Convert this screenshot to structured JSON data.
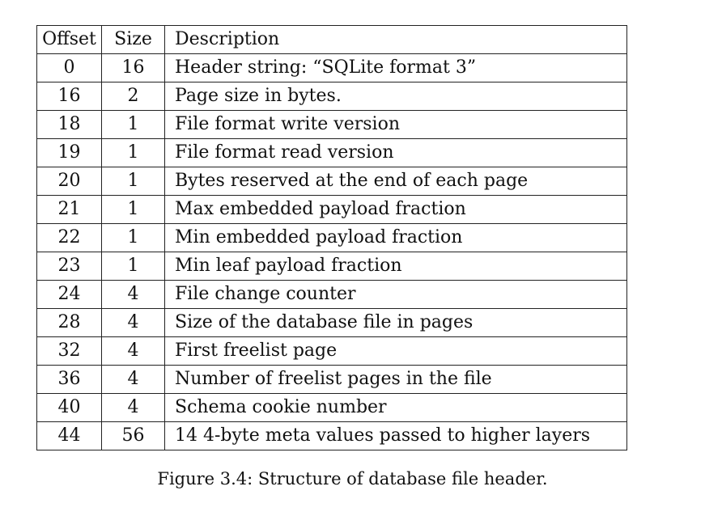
{
  "table": {
    "headers": {
      "offset": "Offset",
      "size": "Size",
      "description": "Description"
    },
    "rows": [
      {
        "offset": "0",
        "size": "16",
        "description": "Header string: “SQLite format 3”"
      },
      {
        "offset": "16",
        "size": "2",
        "description": "Page size in bytes."
      },
      {
        "offset": "18",
        "size": "1",
        "description": "File format write version"
      },
      {
        "offset": "19",
        "size": "1",
        "description": "File format read version"
      },
      {
        "offset": "20",
        "size": "1",
        "description": "Bytes reserved at the end of each page"
      },
      {
        "offset": "21",
        "size": "1",
        "description": "Max embedded payload fraction"
      },
      {
        "offset": "22",
        "size": "1",
        "description": "Min embedded payload fraction"
      },
      {
        "offset": "23",
        "size": "1",
        "description": "Min leaf payload fraction"
      },
      {
        "offset": "24",
        "size": "4",
        "description": "File change counter"
      },
      {
        "offset": "28",
        "size": "4",
        "description": "Size of the database file in pages"
      },
      {
        "offset": "32",
        "size": "4",
        "description": "First freelist page"
      },
      {
        "offset": "36",
        "size": "4",
        "description": "Number of freelist pages in the file"
      },
      {
        "offset": "40",
        "size": "4",
        "description": "Schema cookie number"
      },
      {
        "offset": "44",
        "size": "56",
        "description": "14 4-byte meta values passed to higher layers"
      }
    ]
  },
  "caption": "Figure 3.4: Structure of database file header."
}
